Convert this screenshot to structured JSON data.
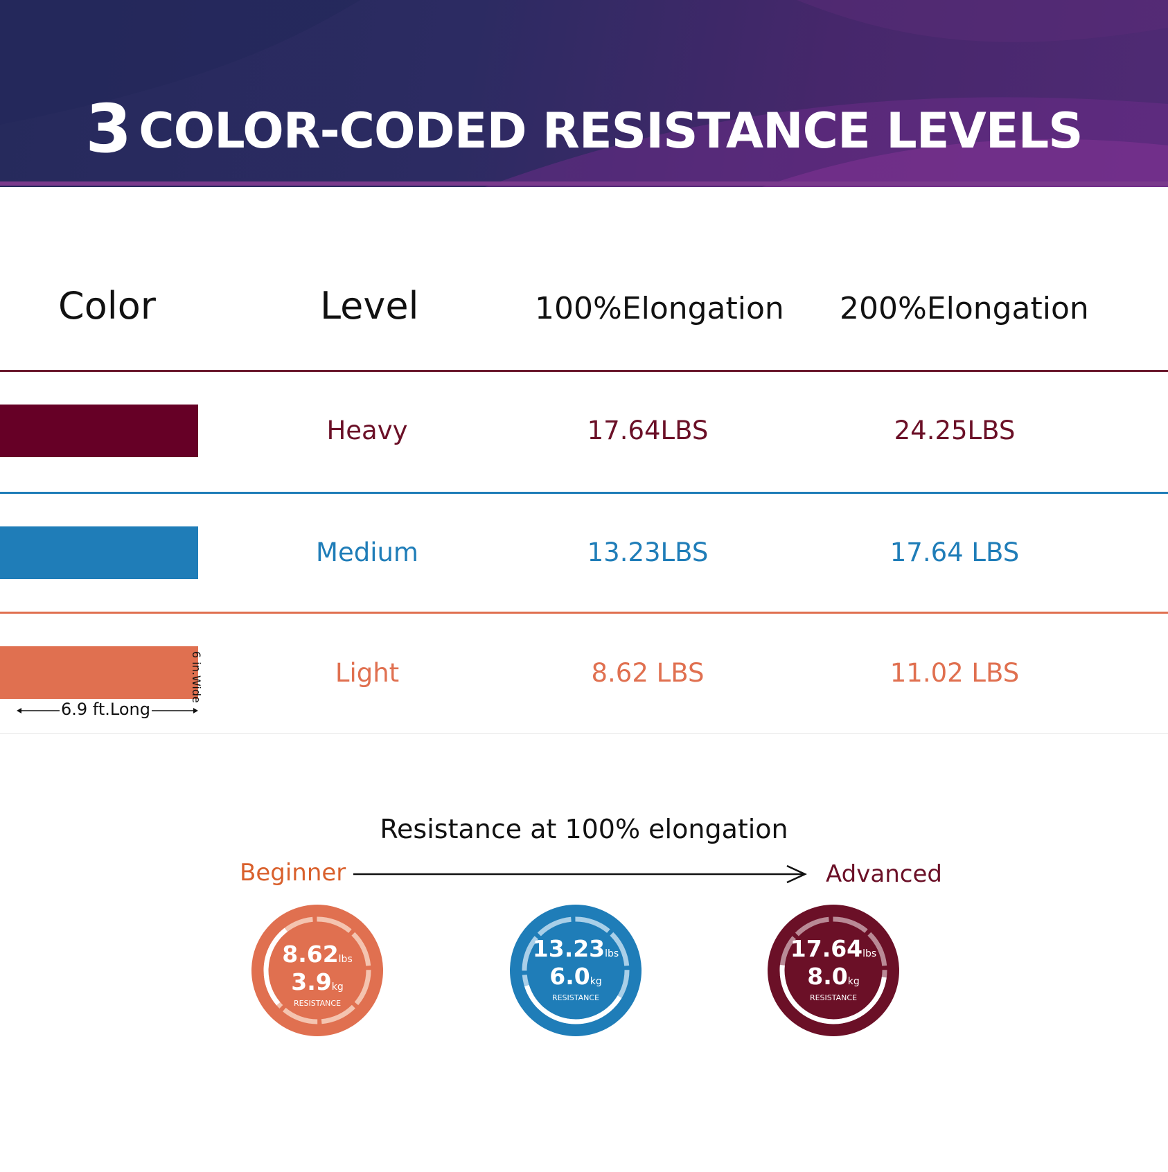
{
  "banner": {
    "number": "3",
    "title": "COLOR-CODED RESISTANCE LEVELS"
  },
  "table": {
    "headers": {
      "color": "Color",
      "level": "Level",
      "elong100": "100%Elongation",
      "elong200": "200%Elongation"
    },
    "rows": [
      {
        "level": "Heavy",
        "elong100": "17.64LBS",
        "elong200": "24.25LBS",
        "color": "#660026"
      },
      {
        "level": "Medium",
        "elong100": "13.23LBS",
        "elong200": "17.64 LBS",
        "color": "#1f7db8"
      },
      {
        "level": "Light",
        "elong100": "8.62 LBS",
        "elong200": "11.02 LBS",
        "color": "#e07050"
      }
    ],
    "dimensions": {
      "length": "6.9 ft.Long",
      "width": "6 in.Wide"
    }
  },
  "resistance": {
    "title": "Resistance at 100% elongation",
    "start_label": "Beginner",
    "end_label": "Advanced",
    "badges": [
      {
        "lbs": "8.62",
        "lbs_unit": "lbs",
        "kg": "3.9",
        "kg_unit": "kg",
        "tag": "RESISTANCE",
        "color": "#e07050"
      },
      {
        "lbs": "13.23",
        "lbs_unit": "lbs",
        "kg": "6.0",
        "kg_unit": "kg",
        "tag": "RESISTANCE",
        "color": "#1f7db8"
      },
      {
        "lbs": "17.64",
        "lbs_unit": "lbs",
        "kg": "8.0",
        "kg_unit": "kg",
        "tag": "RESISTANCE",
        "color": "#6b1027"
      }
    ]
  }
}
